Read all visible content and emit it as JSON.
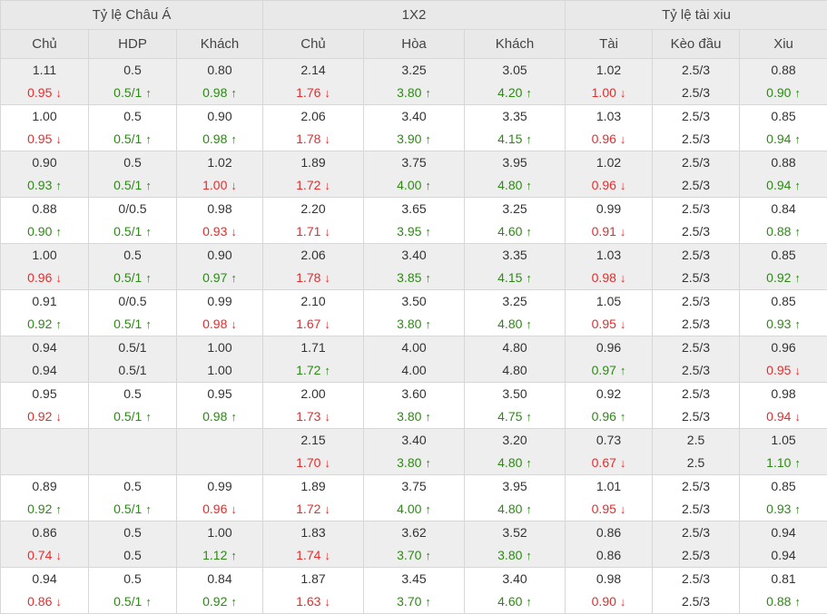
{
  "colors": {
    "up": "#2c8a14",
    "down": "#e32d2d",
    "header_bg": "#e9e9e9",
    "alt_row_bg": "#eeeeee"
  },
  "groups": [
    "Tỷ lệ Châu Á",
    "1X2",
    "Tỷ lệ tài xiu"
  ],
  "columns": [
    "Chủ",
    "HDP",
    "Khách",
    "Chủ",
    "Hòa",
    "Khách",
    "Tài",
    "Kèo đầu",
    "Xiu"
  ],
  "rows": [
    [
      [
        "1.11",
        "0.95",
        "down"
      ],
      [
        "0.5",
        "0.5/1",
        "up"
      ],
      [
        "0.80",
        "0.98",
        "up"
      ],
      [
        "2.14",
        "1.76",
        "down"
      ],
      [
        "3.25",
        "3.80",
        "up"
      ],
      [
        "3.05",
        "4.20",
        "up"
      ],
      [
        "1.02",
        "1.00",
        "down"
      ],
      [
        "2.5/3",
        "2.5/3",
        ""
      ],
      [
        "0.88",
        "0.90",
        "up"
      ]
    ],
    [
      [
        "1.00",
        "0.95",
        "down"
      ],
      [
        "0.5",
        "0.5/1",
        "up"
      ],
      [
        "0.90",
        "0.98",
        "up"
      ],
      [
        "2.06",
        "1.78",
        "down"
      ],
      [
        "3.40",
        "3.90",
        "up"
      ],
      [
        "3.35",
        "4.15",
        "up"
      ],
      [
        "1.03",
        "0.96",
        "down"
      ],
      [
        "2.5/3",
        "2.5/3",
        ""
      ],
      [
        "0.85",
        "0.94",
        "up"
      ]
    ],
    [
      [
        "0.90",
        "0.93",
        "up"
      ],
      [
        "0.5",
        "0.5/1",
        "up"
      ],
      [
        "1.02",
        "1.00",
        "down"
      ],
      [
        "1.89",
        "1.72",
        "down"
      ],
      [
        "3.75",
        "4.00",
        "up"
      ],
      [
        "3.95",
        "4.80",
        "up"
      ],
      [
        "1.02",
        "0.96",
        "down"
      ],
      [
        "2.5/3",
        "2.5/3",
        ""
      ],
      [
        "0.88",
        "0.94",
        "up"
      ]
    ],
    [
      [
        "0.88",
        "0.90",
        "up"
      ],
      [
        "0/0.5",
        "0.5/1",
        "up"
      ],
      [
        "0.98",
        "0.93",
        "down"
      ],
      [
        "2.20",
        "1.71",
        "down"
      ],
      [
        "3.65",
        "3.95",
        "up"
      ],
      [
        "3.25",
        "4.60",
        "up"
      ],
      [
        "0.99",
        "0.91",
        "down"
      ],
      [
        "2.5/3",
        "2.5/3",
        ""
      ],
      [
        "0.84",
        "0.88",
        "up"
      ]
    ],
    [
      [
        "1.00",
        "0.96",
        "down"
      ],
      [
        "0.5",
        "0.5/1",
        "up"
      ],
      [
        "0.90",
        "0.97",
        "up"
      ],
      [
        "2.06",
        "1.78",
        "down"
      ],
      [
        "3.40",
        "3.85",
        "up"
      ],
      [
        "3.35",
        "4.15",
        "up"
      ],
      [
        "1.03",
        "0.98",
        "down"
      ],
      [
        "2.5/3",
        "2.5/3",
        ""
      ],
      [
        "0.85",
        "0.92",
        "up"
      ]
    ],
    [
      [
        "0.91",
        "0.92",
        "up"
      ],
      [
        "0/0.5",
        "0.5/1",
        "up"
      ],
      [
        "0.99",
        "0.98",
        "down"
      ],
      [
        "2.10",
        "1.67",
        "down"
      ],
      [
        "3.50",
        "3.80",
        "up"
      ],
      [
        "3.25",
        "4.80",
        "up"
      ],
      [
        "1.05",
        "0.95",
        "down"
      ],
      [
        "2.5/3",
        "2.5/3",
        ""
      ],
      [
        "0.85",
        "0.93",
        "up"
      ]
    ],
    [
      [
        "0.94",
        "0.94",
        ""
      ],
      [
        "0.5/1",
        "0.5/1",
        ""
      ],
      [
        "1.00",
        "1.00",
        ""
      ],
      [
        "1.71",
        "1.72",
        "up"
      ],
      [
        "4.00",
        "4.00",
        ""
      ],
      [
        "4.80",
        "4.80",
        ""
      ],
      [
        "0.96",
        "0.97",
        "up"
      ],
      [
        "2.5/3",
        "2.5/3",
        ""
      ],
      [
        "0.96",
        "0.95",
        "down"
      ]
    ],
    [
      [
        "0.95",
        "0.92",
        "down"
      ],
      [
        "0.5",
        "0.5/1",
        "up"
      ],
      [
        "0.95",
        "0.98",
        "up"
      ],
      [
        "2.00",
        "1.73",
        "down"
      ],
      [
        "3.60",
        "3.80",
        "up"
      ],
      [
        "3.50",
        "4.75",
        "up"
      ],
      [
        "0.92",
        "0.96",
        "up"
      ],
      [
        "2.5/3",
        "2.5/3",
        ""
      ],
      [
        "0.98",
        "0.94",
        "down"
      ]
    ],
    [
      [
        "",
        "",
        ""
      ],
      [
        "",
        "",
        ""
      ],
      [
        "",
        "",
        ""
      ],
      [
        "2.15",
        "1.70",
        "down"
      ],
      [
        "3.40",
        "3.80",
        "up"
      ],
      [
        "3.20",
        "4.80",
        "up"
      ],
      [
        "0.73",
        "0.67",
        "down"
      ],
      [
        "2.5",
        "2.5",
        ""
      ],
      [
        "1.05",
        "1.10",
        "up"
      ]
    ],
    [
      [
        "0.89",
        "0.92",
        "up"
      ],
      [
        "0.5",
        "0.5/1",
        "up"
      ],
      [
        "0.99",
        "0.96",
        "down"
      ],
      [
        "1.89",
        "1.72",
        "down"
      ],
      [
        "3.75",
        "4.00",
        "up"
      ],
      [
        "3.95",
        "4.80",
        "up"
      ],
      [
        "1.01",
        "0.95",
        "down"
      ],
      [
        "2.5/3",
        "2.5/3",
        ""
      ],
      [
        "0.85",
        "0.93",
        "up"
      ]
    ],
    [
      [
        "0.86",
        "0.74",
        "down"
      ],
      [
        "0.5",
        "0.5",
        ""
      ],
      [
        "1.00",
        "1.12",
        "up"
      ],
      [
        "1.83",
        "1.74",
        "down"
      ],
      [
        "3.62",
        "3.70",
        "up"
      ],
      [
        "3.52",
        "3.80",
        "up"
      ],
      [
        "0.86",
        "0.86",
        ""
      ],
      [
        "2.5/3",
        "2.5/3",
        ""
      ],
      [
        "0.94",
        "0.94",
        ""
      ]
    ],
    [
      [
        "0.94",
        "0.86",
        "down"
      ],
      [
        "0.5",
        "0.5/1",
        "up"
      ],
      [
        "0.84",
        "0.92",
        "up"
      ],
      [
        "1.87",
        "1.63",
        "down"
      ],
      [
        "3.45",
        "3.70",
        "up"
      ],
      [
        "3.40",
        "4.60",
        "up"
      ],
      [
        "0.98",
        "0.90",
        "down"
      ],
      [
        "2.5/3",
        "2.5/3",
        ""
      ],
      [
        "0.81",
        "0.88",
        "up"
      ]
    ]
  ]
}
